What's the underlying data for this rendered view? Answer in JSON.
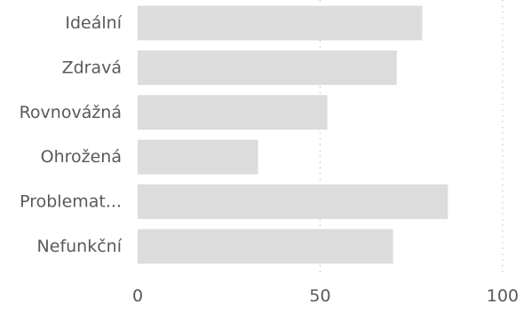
{
  "chart_data": {
    "type": "bar",
    "orientation": "horizontal",
    "title": "",
    "xlabel": "",
    "ylabel": "",
    "categories": [
      "Ideální",
      "Zdravá",
      "Rovnovážná",
      "Ohrožená",
      "Problemat...",
      "Nefunkční"
    ],
    "values": [
      78,
      71,
      52,
      33,
      85,
      70
    ],
    "xlim": [
      0,
      100
    ],
    "xticks": [
      "0",
      "50",
      "100"
    ],
    "grid": true,
    "colors": {
      "bar": "#dcdcdc",
      "text": "#595959",
      "grid": "#c8c8c8"
    }
  }
}
